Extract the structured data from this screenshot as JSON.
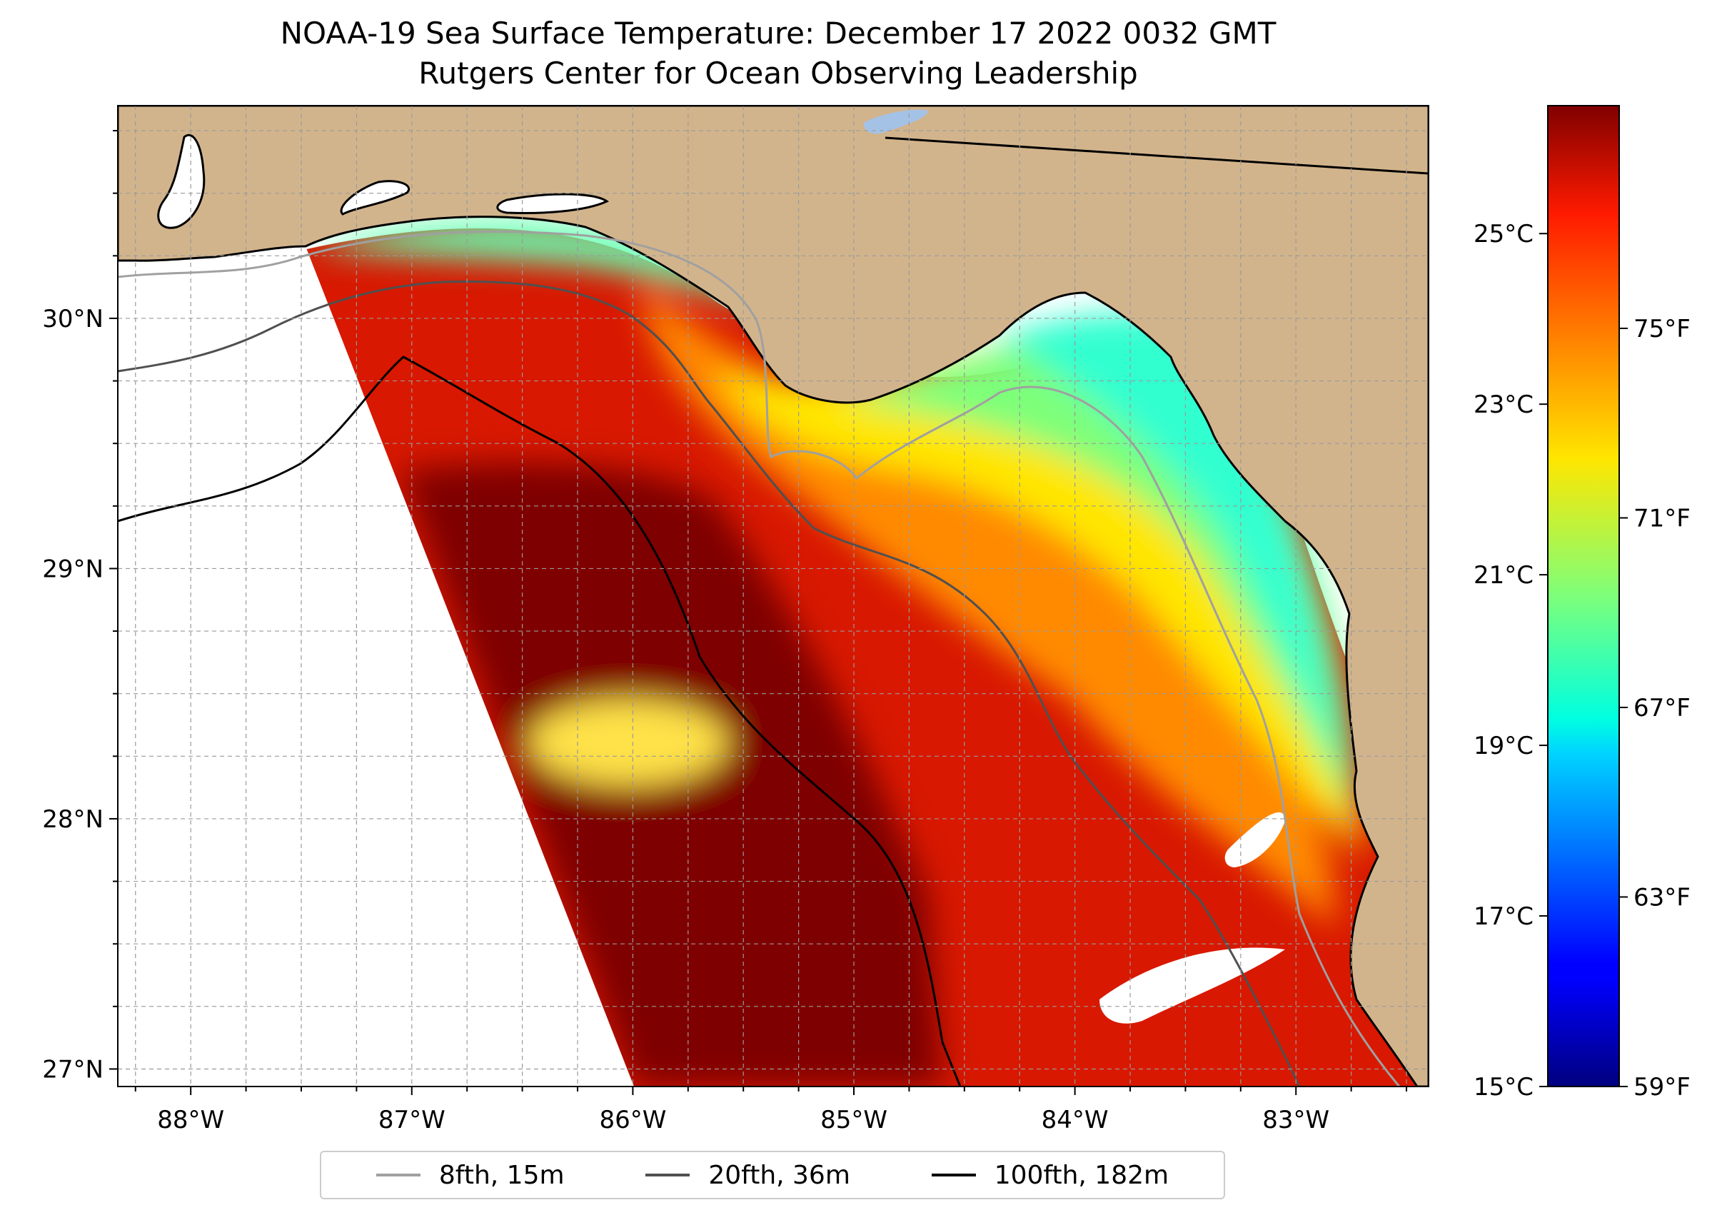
{
  "title": {
    "line1": "NOAA-19 Sea Surface Temperature: December 17 2022 0032 GMT",
    "line2": "Rutgers Center for Ocean Observing Leadership"
  },
  "map": {
    "lon_range": [
      -88.33,
      -82.4
    ],
    "lat_range": [
      26.93,
      30.85
    ],
    "land_color": "#d2b48c",
    "lake_color": "#a4c2e6",
    "lat_ticks": [
      {
        "value": 30,
        "label": "30°N"
      },
      {
        "value": 29,
        "label": "29°N"
      },
      {
        "value": 28,
        "label": "28°N"
      },
      {
        "value": 27,
        "label": "27°N"
      }
    ],
    "lon_ticks": [
      {
        "value": -88,
        "label": "88°W"
      },
      {
        "value": -87,
        "label": "87°W"
      },
      {
        "value": -86,
        "label": "86°W"
      },
      {
        "value": -85,
        "label": "85°W"
      },
      {
        "value": -84,
        "label": "84°W"
      },
      {
        "value": -83,
        "label": "83°W"
      }
    ],
    "gridline_step_deg": 0.25
  },
  "colorbar": {
    "colormap": "jet",
    "range_c": [
      15,
      26.5
    ],
    "celsius_ticks": [
      {
        "value": 25,
        "label": "25°C"
      },
      {
        "value": 23,
        "label": "23°C"
      },
      {
        "value": 21,
        "label": "21°C"
      },
      {
        "value": 19,
        "label": "19°C"
      },
      {
        "value": 17,
        "label": "17°C"
      },
      {
        "value": 15,
        "label": "15°C"
      }
    ],
    "fahrenheit_ticks": [
      {
        "value": 75,
        "label": "75°F"
      },
      {
        "value": 71,
        "label": "71°F"
      },
      {
        "value": 67,
        "label": "67°F"
      },
      {
        "value": 63,
        "label": "63°F"
      },
      {
        "value": 59,
        "label": "59°F"
      }
    ]
  },
  "legend": {
    "items": [
      {
        "label": "8fth, 15m",
        "color": "#a0a0a0"
      },
      {
        "label": "20fth, 36m",
        "color": "#505050"
      },
      {
        "label": "100fth, 182m",
        "color": "#000000"
      }
    ]
  }
}
